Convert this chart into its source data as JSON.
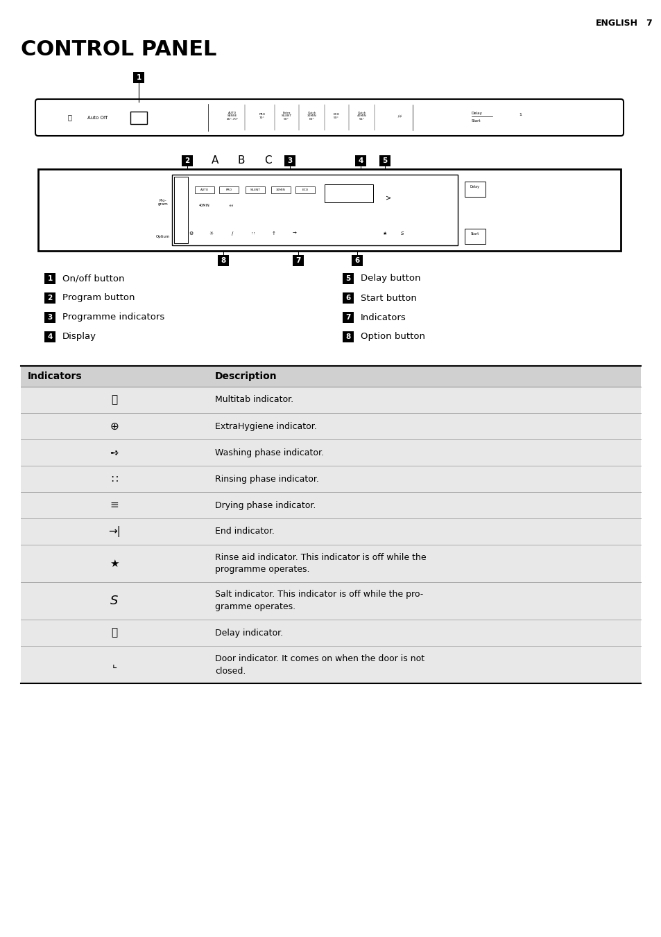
{
  "title": "CONTROL PANEL",
  "header_right": "ENGLISH    7",
  "legend_left": [
    {
      "num": "1",
      "text": "On/off button"
    },
    {
      "num": "2",
      "text": "Program button"
    },
    {
      "num": "3",
      "text": "Programme indicators"
    },
    {
      "num": "4",
      "text": "Display"
    }
  ],
  "legend_right": [
    {
      "num": "5",
      "text": "Delay button"
    },
    {
      "num": "6",
      "text": "Start button"
    },
    {
      "num": "7",
      "text": "Indicators"
    },
    {
      "num": "8",
      "text": "Option button"
    }
  ],
  "table_header": [
    "Indicators",
    "Description"
  ],
  "desc_texts": [
    "Multitab indicator.",
    "ExtraHygiene indicator.",
    "Washing phase indicator.",
    "Rinsing phase indicator.",
    "Drying phase indicator.",
    "End indicator.",
    "Rinse aid indicator. This indicator is off while the\nprogramme operates.",
    "Salt indicator. This indicator is off while the pro-\ngramme operates.",
    "Delay indicator.",
    "Door indicator. It comes on when the door is not\nclosed."
  ],
  "bg_color": "#ffffff",
  "table_row_bg": "#e8e8e8"
}
